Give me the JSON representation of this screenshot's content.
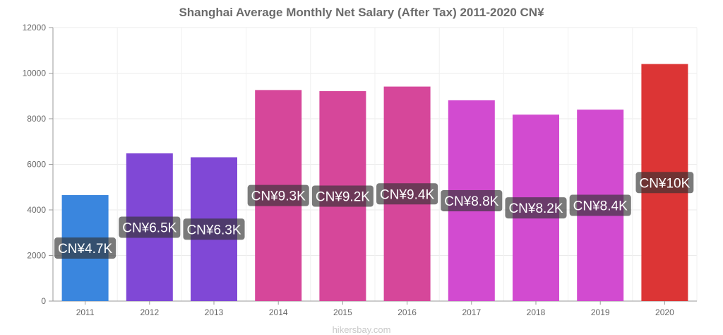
{
  "chart_data": {
    "type": "bar",
    "title": "Shanghai Average Monthly Net Salary (After Tax) 2011-2020 CN¥",
    "xlabel": "",
    "ylabel": "",
    "categories": [
      "2011",
      "2012",
      "2013",
      "2014",
      "2015",
      "2016",
      "2017",
      "2018",
      "2019",
      "2020"
    ],
    "values": [
      4650,
      6480,
      6310,
      9260,
      9210,
      9410,
      8810,
      8180,
      8400,
      10400
    ],
    "data_labels": [
      "CN¥4.7K",
      "CN¥6.5K",
      "CN¥6.3K",
      "CN¥9.3K",
      "CN¥9.2K",
      "CN¥9.4K",
      "CN¥8.8K",
      "CN¥8.2K",
      "CN¥8.4K",
      "CN¥10K"
    ],
    "bar_colors": [
      "#3a86de",
      "#8048d6",
      "#8048d6",
      "#d6479a",
      "#d6479a",
      "#d6479a",
      "#d24bd0",
      "#d24bd0",
      "#d24bd0",
      "#dc3535"
    ],
    "ylim": [
      0,
      12000
    ],
    "yticks": [
      "0",
      "2000",
      "4000",
      "6000",
      "8000",
      "10000",
      "12000"
    ],
    "grid": true,
    "legend": "none"
  },
  "watermark": "hikersbay.com"
}
